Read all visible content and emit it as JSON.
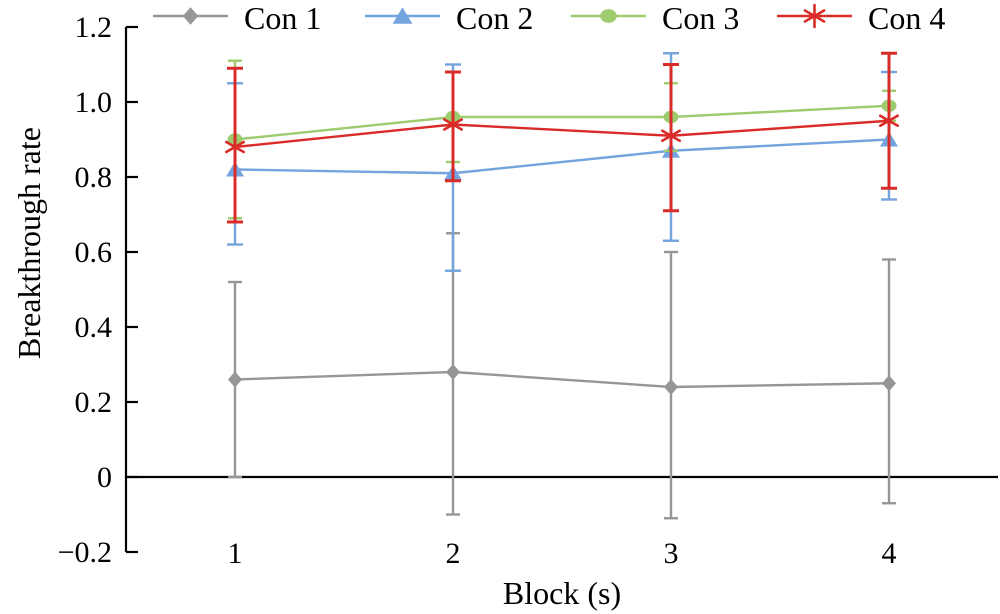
{
  "chart_data": {
    "type": "line",
    "title": "",
    "xlabel": "Block (s)",
    "ylabel": "Breakthrough rate",
    "x": [
      1,
      2,
      3,
      4
    ],
    "xlim": [
      0.5,
      4.5
    ],
    "ylim": [
      -0.2,
      1.2
    ],
    "grid": false,
    "legend_position": "top-horizontal",
    "axis_color": "#000000",
    "xtick_labels": [
      "1",
      "2",
      "3",
      "4"
    ],
    "yticks": [
      1.2,
      1.0,
      0.8,
      0.6,
      0.4,
      0.2,
      0,
      -0.2
    ],
    "ytick_labels": [
      "1.2",
      "1.0",
      "0.8",
      "0.6",
      "0.4",
      "0.2",
      "0",
      "−0.2"
    ],
    "series": [
      {
        "name": "Con 1",
        "marker": "diamond",
        "color": "#969696",
        "values": [
          0.26,
          0.28,
          0.24,
          0.25
        ],
        "err_upper": [
          0.52,
          0.65,
          0.6,
          0.58
        ],
        "err_lower": [
          0.0,
          -0.1,
          -0.11,
          -0.07
        ]
      },
      {
        "name": "Con 2",
        "marker": "triangle",
        "color": "#74a4dd",
        "values": [
          0.82,
          0.81,
          0.87,
          0.9
        ],
        "err_upper": [
          1.05,
          1.1,
          1.13,
          1.08
        ],
        "err_lower": [
          0.62,
          0.55,
          0.63,
          0.74
        ]
      },
      {
        "name": "Con 3",
        "marker": "circle",
        "color": "#9ecb6e",
        "values": [
          0.9,
          0.96,
          0.96,
          0.99
        ],
        "err_upper": [
          1.11,
          1.08,
          1.05,
          1.03
        ],
        "err_lower": [
          0.69,
          0.84,
          0.87,
          0.95
        ]
      },
      {
        "name": "Con 4",
        "marker": "asterisk",
        "color": "#d92b28",
        "values": [
          0.88,
          0.94,
          0.91,
          0.95
        ],
        "err_upper": [
          1.09,
          1.08,
          1.1,
          1.13
        ],
        "err_lower": [
          0.68,
          0.79,
          0.71,
          0.77
        ]
      }
    ]
  }
}
